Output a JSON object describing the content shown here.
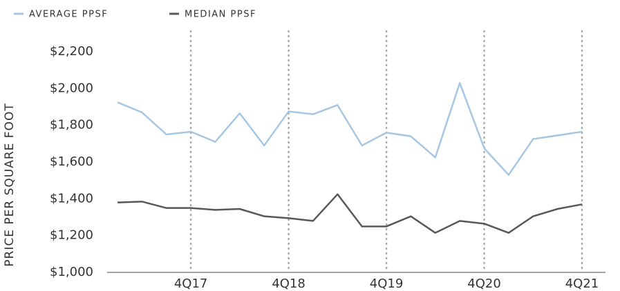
{
  "chart_data": {
    "type": "line",
    "y_label": "PRICE PER SQUARE FOOT",
    "categories": [
      null,
      null,
      null,
      "4Q17",
      null,
      null,
      null,
      "4Q18",
      null,
      null,
      null,
      "4Q19",
      null,
      null,
      null,
      "4Q20",
      null,
      null,
      null,
      "4Q21"
    ],
    "series": [
      {
        "name": "AVERAGE PPSF",
        "color": "#a6c6e2",
        "values": [
          1925,
          1870,
          1750,
          1765,
          1710,
          1865,
          1690,
          1875,
          1860,
          1910,
          1690,
          1760,
          1740,
          1625,
          2030,
          1675,
          1530,
          1725,
          1745,
          1765
        ]
      },
      {
        "name": "MEDIAN PPSF",
        "color": "#585858",
        "values": [
          1380,
          1385,
          1350,
          1350,
          1340,
          1345,
          1305,
          1295,
          1280,
          1425,
          1250,
          1250,
          1305,
          1215,
          1280,
          1265,
          1215,
          1305,
          1345,
          1370
        ]
      }
    ],
    "ylim": [
      1000,
      2200
    ],
    "yticks": [
      {
        "value": 1000,
        "label": "$1,000"
      },
      {
        "value": 1200,
        "label": "$1,200"
      },
      {
        "value": 1400,
        "label": "$1,400"
      },
      {
        "value": 1600,
        "label": "$1,600"
      },
      {
        "value": 1800,
        "label": "$1,800"
      },
      {
        "value": 2000,
        "label": "$2,000"
      },
      {
        "value": 2200,
        "label": "$2,200"
      }
    ],
    "legend": "top-left"
  }
}
